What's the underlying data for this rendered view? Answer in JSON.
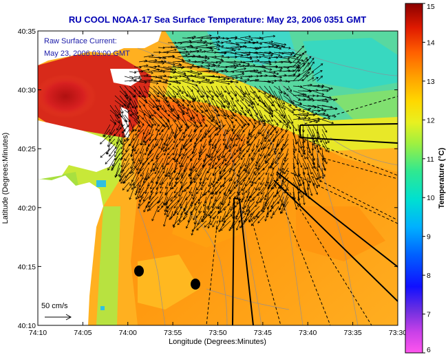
{
  "title": "RU COOL  NOAA-17  Sea Surface Temperature:  May 23, 2006 0351 GMT",
  "annotation": {
    "line1": "Raw Surface Current:",
    "line2": "May 23, 2006 03:00 GMT"
  },
  "x_axis": {
    "label": "Longitude (Degrees:Minutes)",
    "ticks": [
      "74:10",
      "74:05",
      "74:00",
      "73:55",
      "73:50",
      "73:45",
      "73:40",
      "73:35",
      "73:30"
    ]
  },
  "y_axis": {
    "label": "Latitude (Degrees:Minutes)",
    "ticks": [
      "40:35",
      "40:30",
      "40:25",
      "40:20",
      "40:15",
      "40:10"
    ]
  },
  "scale_arrow": {
    "label": "50 cm/s"
  },
  "colorbar": {
    "label": "Temperature (°C)",
    "ticks": [
      "15",
      "14",
      "13",
      "12",
      "11",
      "10",
      "9",
      "8",
      "7",
      "6"
    ],
    "min": 6,
    "max": 15
  },
  "colors": {
    "title": "#0000b4",
    "annotation": "#1a1aa8",
    "land": "#ffffff"
  }
}
